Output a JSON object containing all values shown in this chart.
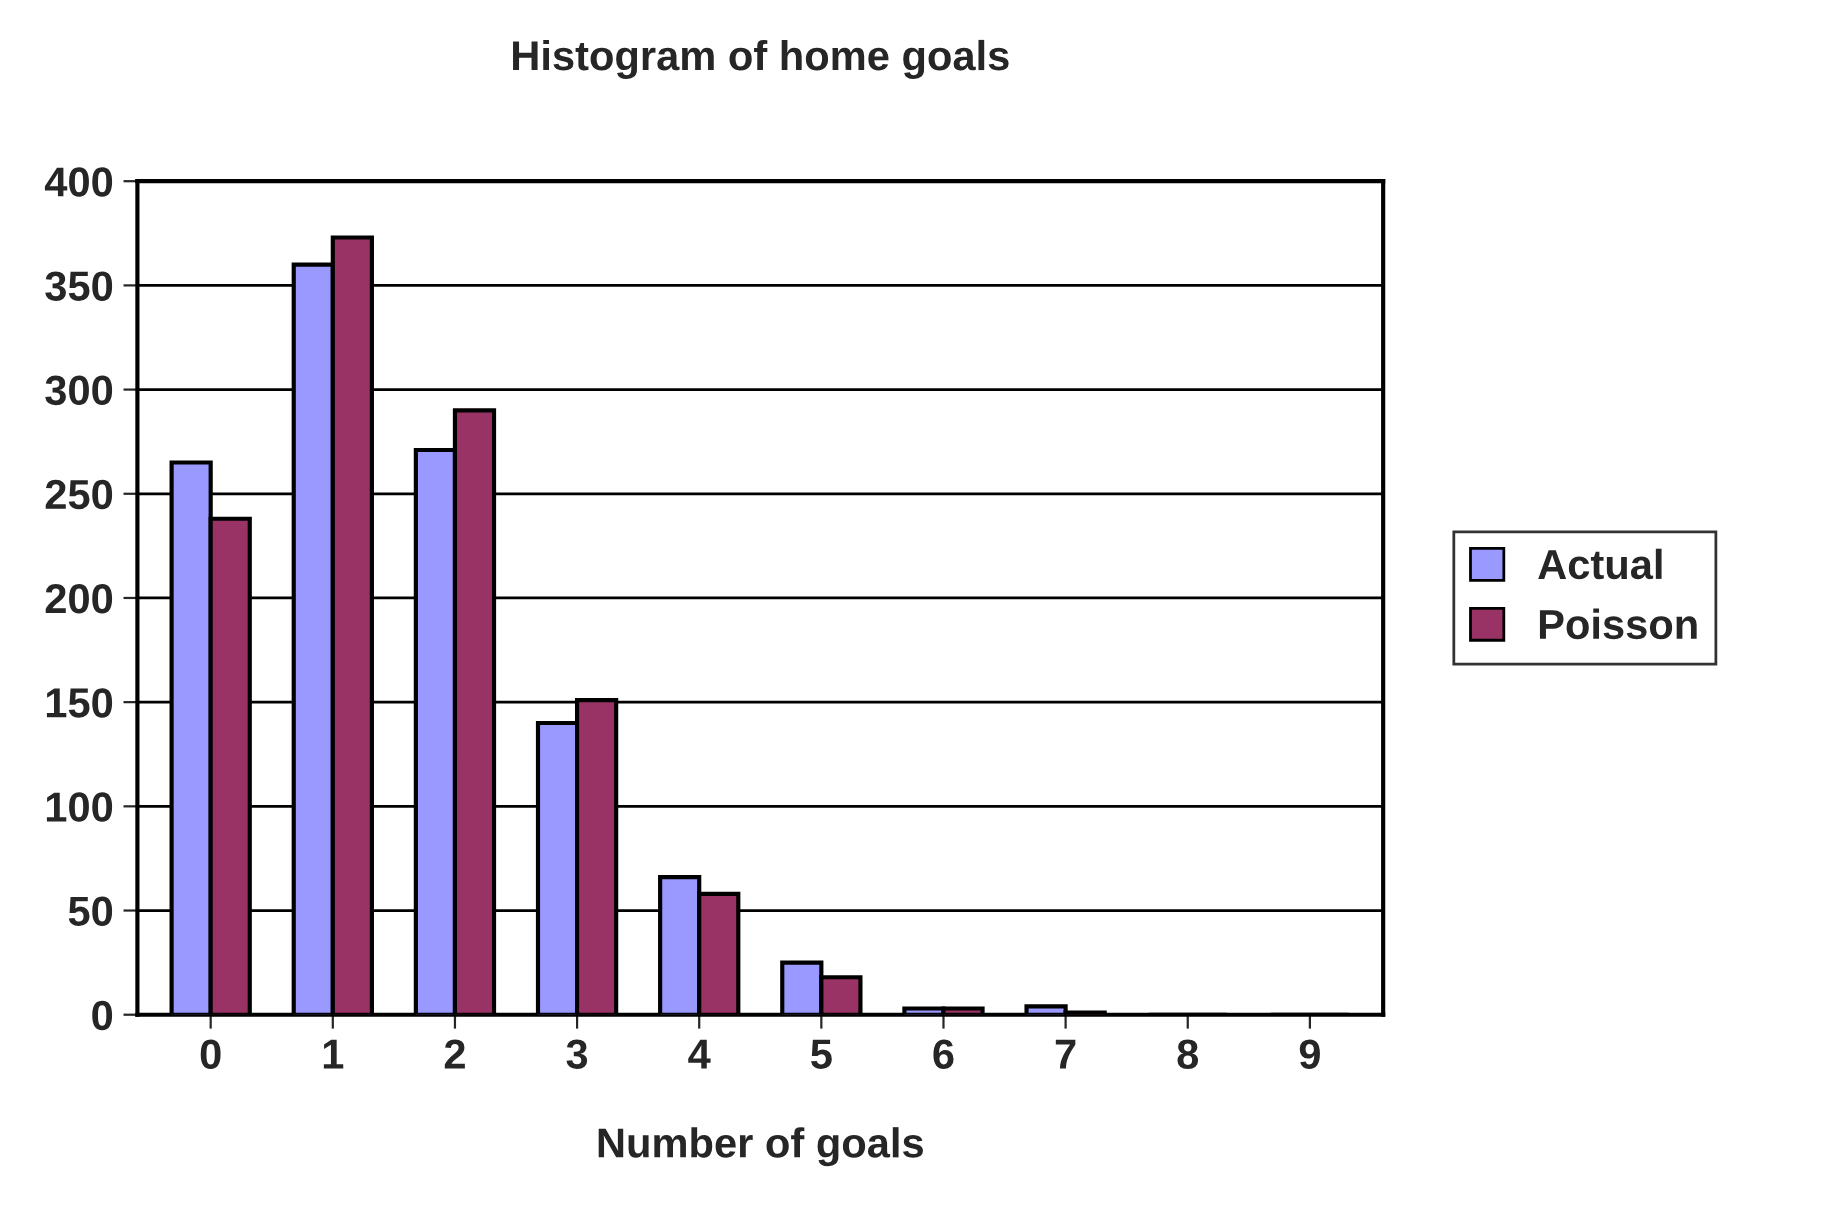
{
  "chart_data": {
    "type": "bar",
    "title": "Histogram of home goals",
    "xlabel": "Number of goals",
    "categories": [
      "0",
      "1",
      "2",
      "3",
      "4",
      "5",
      "6",
      "7",
      "8",
      "9"
    ],
    "series": [
      {
        "name": "Actual",
        "color": "#9999ff",
        "values": [
          265,
          360,
          271,
          140,
          66,
          25,
          3,
          4,
          0,
          0
        ]
      },
      {
        "name": "Poisson",
        "color": "#993366",
        "values": [
          238,
          373,
          290,
          151,
          58,
          18,
          3,
          1,
          0,
          0
        ]
      }
    ],
    "ylim": [
      0,
      400
    ],
    "yticks": [
      0,
      50,
      100,
      150,
      200,
      250,
      300,
      350,
      400
    ],
    "grid": "y",
    "legend": "right"
  }
}
